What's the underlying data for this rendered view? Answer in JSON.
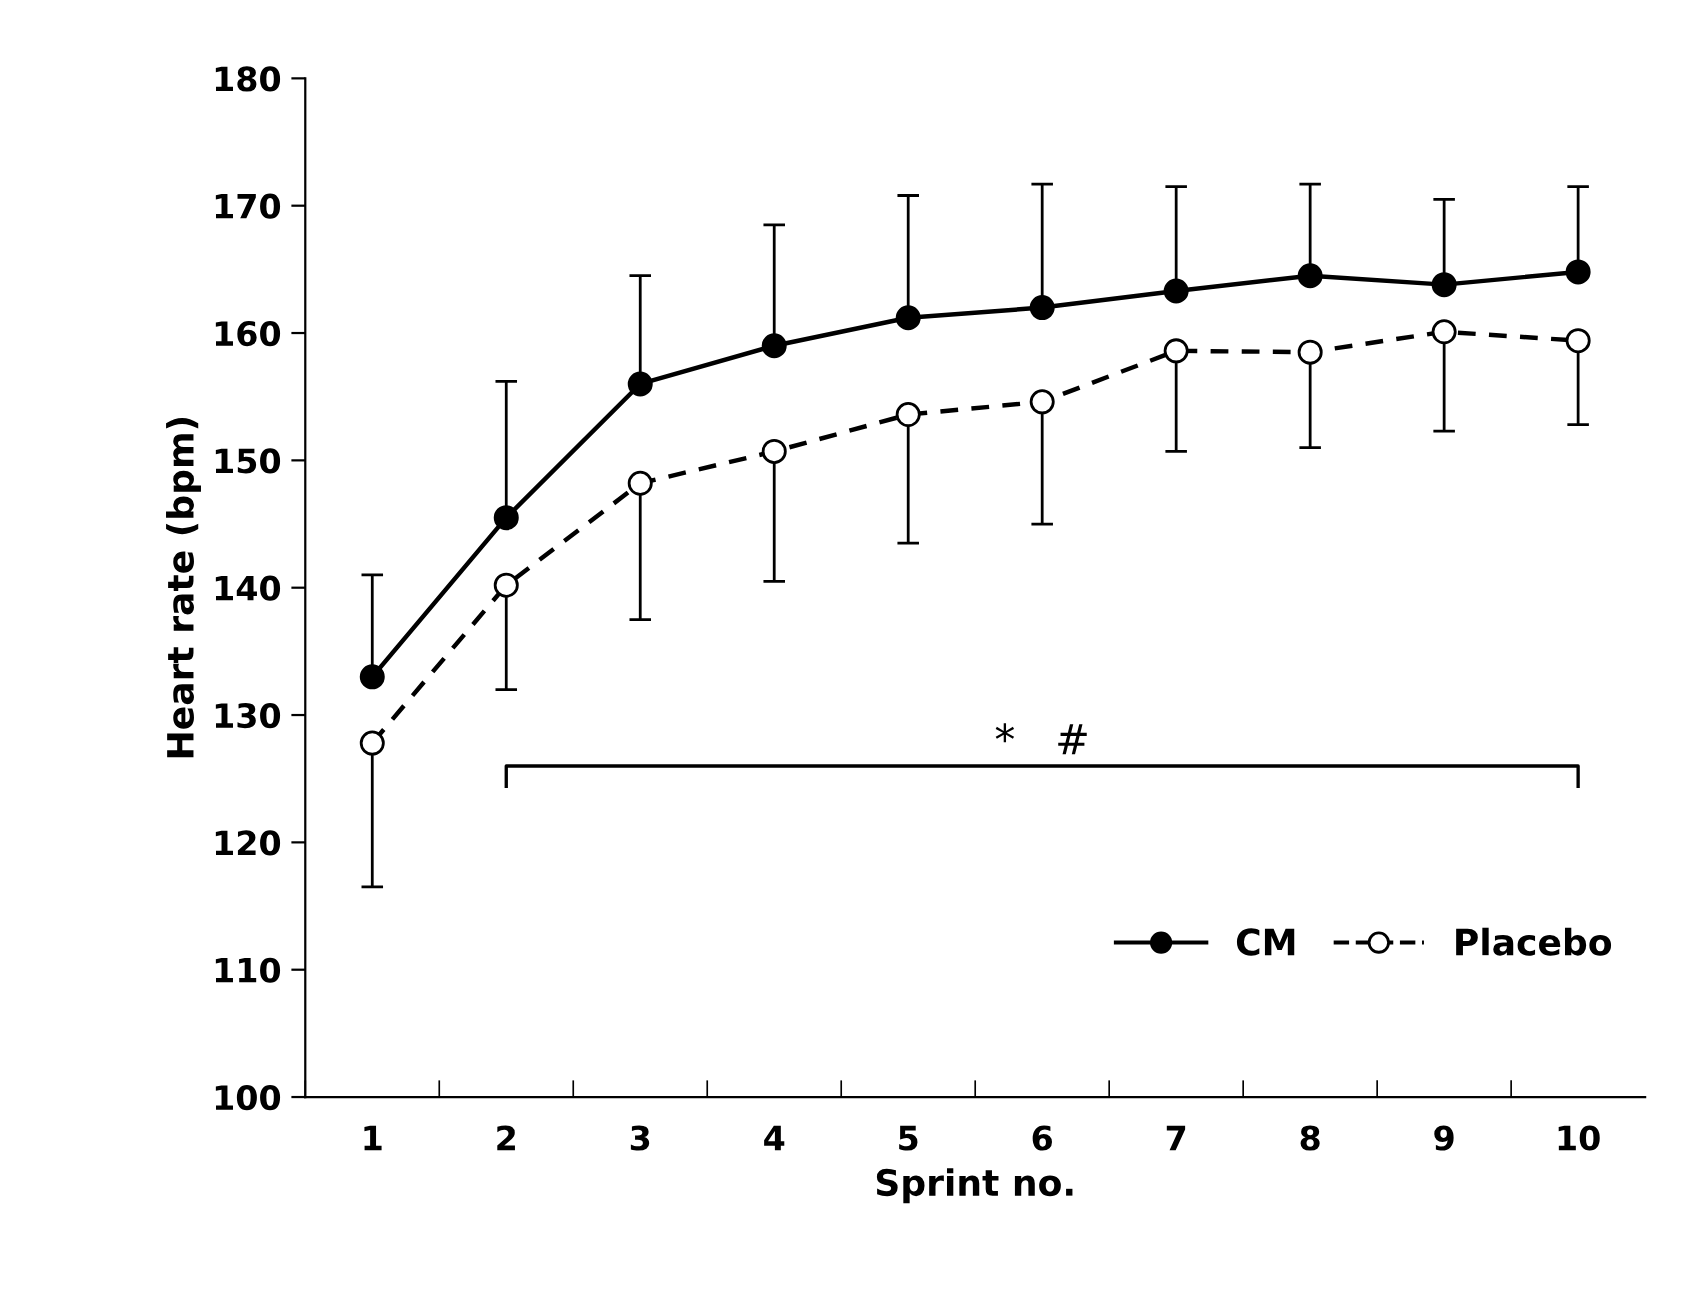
{
  "chart_data": {
    "type": "line",
    "xlabel": "Sprint no.",
    "ylabel": "Heart rate (bpm)",
    "categories": [
      "1",
      "2",
      "3",
      "4",
      "5",
      "6",
      "7",
      "8",
      "9",
      "10"
    ],
    "series": [
      {
        "name": "CM",
        "color": "#000000",
        "marker": "circle",
        "line_style": "solid",
        "values": [
          133,
          145.5,
          156,
          159,
          161.2,
          162,
          163.3,
          164.5,
          163.8,
          164.8
        ],
        "errors": [
          [
            133,
            141
          ],
          [
            145.5,
            156.2
          ],
          [
            156,
            164.5
          ],
          [
            159,
            168.5
          ],
          [
            161.2,
            170.8
          ],
          [
            162,
            171.7
          ],
          [
            163.3,
            171.5
          ],
          [
            164.5,
            171.7
          ],
          [
            163.8,
            170.5
          ],
          [
            164.8,
            171.5
          ]
        ]
      },
      {
        "name": "Placebo",
        "color": "#000000",
        "marker": "circle",
        "line_style": "dashed",
        "values": [
          127.8,
          140.2,
          148.2,
          150.7,
          153.6,
          154.6,
          158.6,
          158.5,
          160.1,
          159.4
        ],
        "errors": [
          [
            116.5,
            127.8
          ],
          [
            132,
            140.2
          ],
          [
            137.5,
            148.2
          ],
          [
            140.5,
            150.7
          ],
          [
            143.5,
            153.6
          ],
          [
            145,
            154.6
          ],
          [
            150.7,
            158.6
          ],
          [
            151,
            158.5
          ],
          [
            152.3,
            160.1
          ],
          [
            152.8,
            159.4
          ]
        ]
      }
    ],
    "ylim": [
      100,
      180
    ],
    "yticks": [
      100,
      110,
      120,
      130,
      140,
      150,
      160,
      170,
      180
    ],
    "annotations": [
      "*   #"
    ],
    "grid": false,
    "legend": "bottom right"
  }
}
